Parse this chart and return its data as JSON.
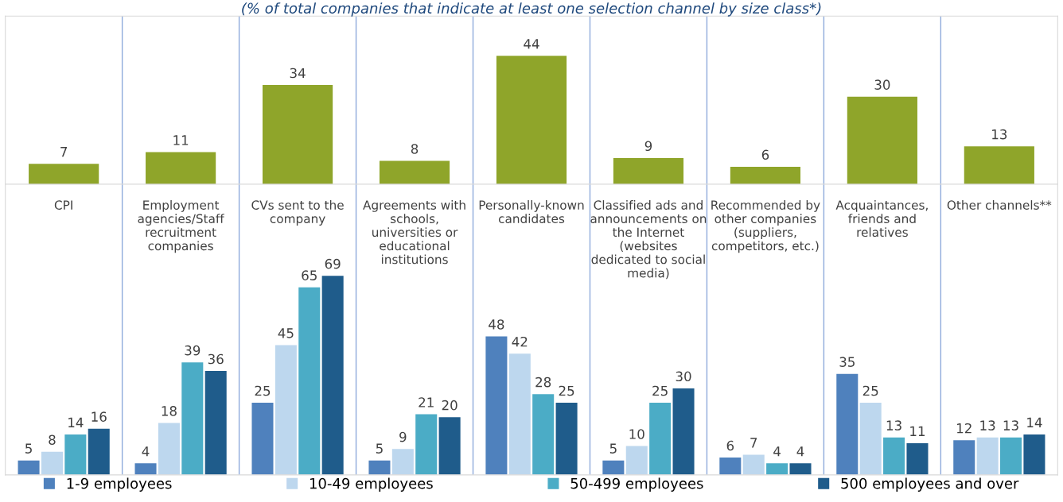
{
  "chart_data": [
    {
      "type": "bar",
      "title": "(% of total companies that indicate at least one selection channel by size class*)",
      "categories": [
        null,
        null,
        null,
        null,
        null,
        null,
        null,
        null,
        null
      ],
      "values": [
        7,
        11,
        34,
        8,
        44,
        9,
        6,
        30,
        13
      ],
      "color": "#8fa52a",
      "data_labels": true,
      "tick_labels": false
    },
    {
      "type": "bar",
      "categories": [
        "CPI",
        "Employment\nagencies/Staff\nrecruitment\ncompanies",
        "CVs sent to the\ncompany",
        "Agreements with\nschools,\nuniversities or\neducational\ninstitutions",
        "Personally-known\ncandidates",
        "Classified ads and\nannouncements on\nthe Internet\n(websites\ndedicated to social\nmedia)",
        "Recommended by\nother companies\n(suppliers,\ncompetitors, etc.)",
        "Acquaintances,\nfriends and\nrelatives",
        "Other channels**"
      ],
      "series": [
        {
          "name": "1-9 employees",
          "color": "#4f81bd",
          "values": [
            5,
            4,
            25,
            5,
            48,
            5,
            6,
            35,
            12
          ]
        },
        {
          "name": "10-49 employees",
          "color": "#bdd7ee",
          "values": [
            8,
            18,
            45,
            9,
            42,
            10,
            7,
            25,
            13
          ]
        },
        {
          "name": "50-499 employees",
          "color": "#4bacc6",
          "values": [
            14,
            39,
            65,
            21,
            28,
            25,
            4,
            13,
            13
          ]
        },
        {
          "name": "500 employees and over",
          "color": "#1f5c8b",
          "values": [
            16,
            36,
            69,
            20,
            25,
            30,
            4,
            11,
            14
          ]
        }
      ],
      "data_labels": true,
      "legend": "bottom",
      "tick_labels": "x"
    }
  ]
}
